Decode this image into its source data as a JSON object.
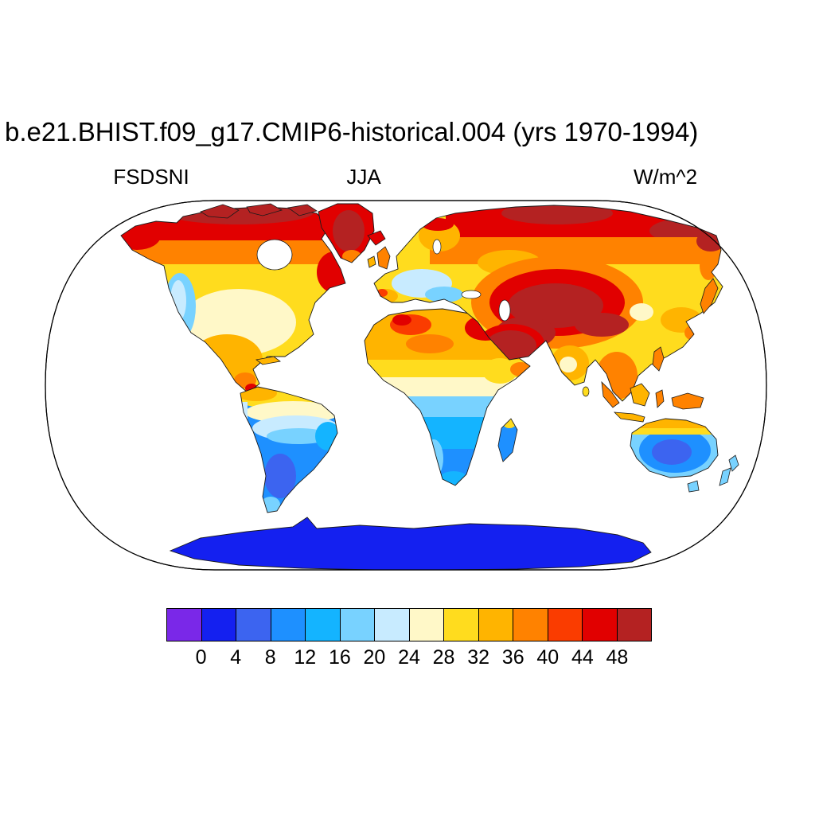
{
  "header": {
    "title": "b.e21.BHIST.f09_g17.CMIP6-historical.004 (yrs 1970-1994)",
    "variable_label": "FSDSNI",
    "season_label": "JJA",
    "units_label": "W/m^2"
  },
  "colorbar": {
    "colors": [
      "#7A28E8",
      "#1420F0",
      "#3C64F0",
      "#1E90FF",
      "#14B4FF",
      "#78D2FF",
      "#C8EBFF",
      "#FFF8C8",
      "#FFDC1E",
      "#FFB400",
      "#FF8200",
      "#FA3C00",
      "#E10000",
      "#B42222"
    ],
    "tick_labels": [
      "0",
      "4",
      "8",
      "12",
      "16",
      "20",
      "24",
      "28",
      "32",
      "36",
      "40",
      "44",
      "48"
    ]
  },
  "map": {
    "ocean_color": "#ffffff",
    "coastline_color": "#1a1a1a",
    "outline_color": "#000000"
  },
  "chart_data": {
    "type": "heatmap",
    "subtype": "filled-contour-world-map",
    "projection": "Robinson",
    "title": "b.e21.BHIST.f09_g17.CMIP6-historical.004 (yrs 1970-1994)",
    "variable": "FSDSNI",
    "season": "JJA",
    "units": "W/m^2",
    "levels": [
      0,
      4,
      8,
      12,
      16,
      20,
      24,
      28,
      32,
      36,
      40,
      44,
      48
    ],
    "palette": [
      "#7A28E8",
      "#1420F0",
      "#3C64F0",
      "#1E90FF",
      "#14B4FF",
      "#78D2FF",
      "#C8EBFF",
      "#FFF8C8",
      "#FFDC1E",
      "#FFB400",
      "#FF8200",
      "#FA3C00",
      "#E10000",
      "#B42222"
    ],
    "ocean": "not plotted (white)",
    "legend_position": "bottom",
    "region_estimates": [
      {
        "region": "Canadian Arctic Archipelago",
        "value_w_m2": ">48"
      },
      {
        "region": "Greenland",
        "value_w_m2": "44-48"
      },
      {
        "region": "Alaska",
        "value_w_m2": "40-48"
      },
      {
        "region": "Central Canada",
        "value_w_m2": "36-44"
      },
      {
        "region": "Central United States",
        "value_w_m2": "24-32"
      },
      {
        "region": "US Pacific coast",
        "value_w_m2": "16-24"
      },
      {
        "region": "Mexico and Central America",
        "value_w_m2": "32-44"
      },
      {
        "region": "Northern South America",
        "value_w_m2": "24-32"
      },
      {
        "region": "Amazon basin",
        "value_w_m2": "16-24"
      },
      {
        "region": "Central and southern South America",
        "value_w_m2": "4-16"
      },
      {
        "region": "Iberia",
        "value_w_m2": "32-44"
      },
      {
        "region": "Central Europe",
        "value_w_m2": "20-24"
      },
      {
        "region": "Scandinavia",
        "value_w_m2": "28-40"
      },
      {
        "region": "Northern Siberia",
        "value_w_m2": "40-48"
      },
      {
        "region": "Central Siberia",
        "value_w_m2": "32-36"
      },
      {
        "region": "Central Asia / Iran / Tibet",
        "value_w_m2": ">48"
      },
      {
        "region": "Arabian Peninsula",
        "value_w_m2": ">48"
      },
      {
        "region": "Sahara",
        "value_w_m2": "32-40"
      },
      {
        "region": "Northwest Africa (Atlas)",
        "value_w_m2": "40-44"
      },
      {
        "region": "Egypt / Northeast Africa",
        "value_w_m2": "44-48"
      },
      {
        "region": "Sahel",
        "value_w_m2": "28-32"
      },
      {
        "region": "Equatorial Africa",
        "value_w_m2": "16-24"
      },
      {
        "region": "Southern Africa",
        "value_w_m2": "8-16"
      },
      {
        "region": "India",
        "value_w_m2": "28-36"
      },
      {
        "region": "East China",
        "value_w_m2": "24-32"
      },
      {
        "region": "Southeast Asia",
        "value_w_m2": "32-40"
      },
      {
        "region": "Indonesia / New Guinea",
        "value_w_m2": "32-40"
      },
      {
        "region": "Japan / Korea",
        "value_w_m2": "32-40"
      },
      {
        "region": "Northeast Siberia",
        "value_w_m2": "44-48"
      },
      {
        "region": "Australia interior",
        "value_w_m2": "4-12"
      },
      {
        "region": "Australia coasts",
        "value_w_m2": "16-24"
      },
      {
        "region": "Northern Australia coast",
        "value_w_m2": "28-36"
      },
      {
        "region": "New Zealand",
        "value_w_m2": "16-20"
      },
      {
        "region": "Antarctica",
        "value_w_m2": "0-4"
      }
    ]
  }
}
